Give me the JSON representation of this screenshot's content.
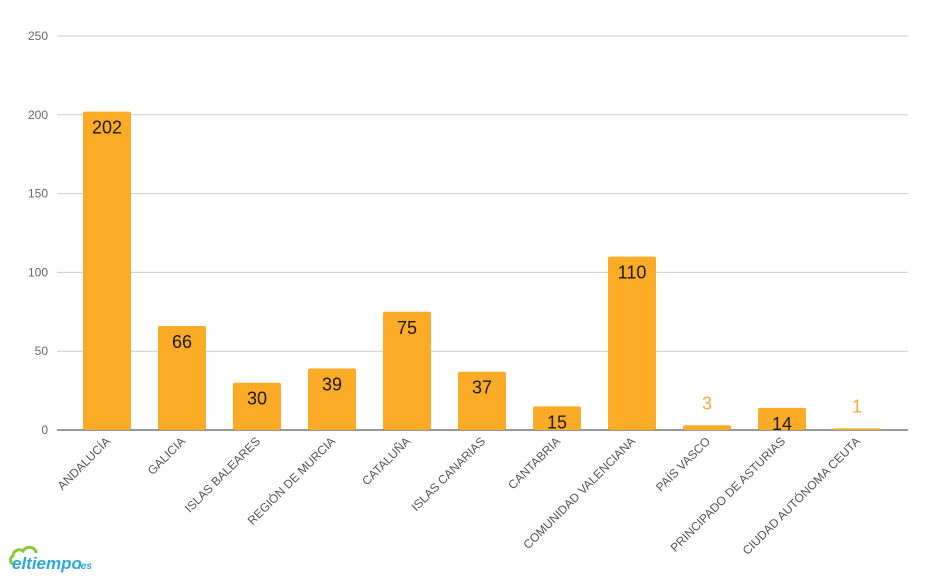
{
  "chart_data": {
    "type": "bar",
    "categories": [
      "ANDALUCÍA",
      "GALICIA",
      "ISLAS BALEARES",
      "REGIÓN DE MURCIA",
      "CATALUÑA",
      "ISLAS CANARIAS",
      "CANTABRIA",
      "COMUNIDAD VALENCIANA",
      "PAÍS VASCO",
      "PRINCIPADO DE ASTURIAS",
      "CIUDAD AUTÓNOMA CEUTA"
    ],
    "values": [
      202,
      66,
      30,
      39,
      75,
      37,
      15,
      110,
      3,
      14,
      1
    ],
    "title": "",
    "xlabel": "",
    "ylabel": "",
    "ylim": [
      0,
      250
    ],
    "yticks": [
      0,
      50,
      100,
      150,
      200,
      250
    ],
    "grid": true,
    "legend": "none",
    "bar_color": "#fbab25",
    "label_inside_color": "#1a1a1a",
    "label_outside_color": "#f0ad3c"
  },
  "logo": {
    "text": "eltiempo",
    "suffix": ".es",
    "color": "#2ea8d8"
  }
}
